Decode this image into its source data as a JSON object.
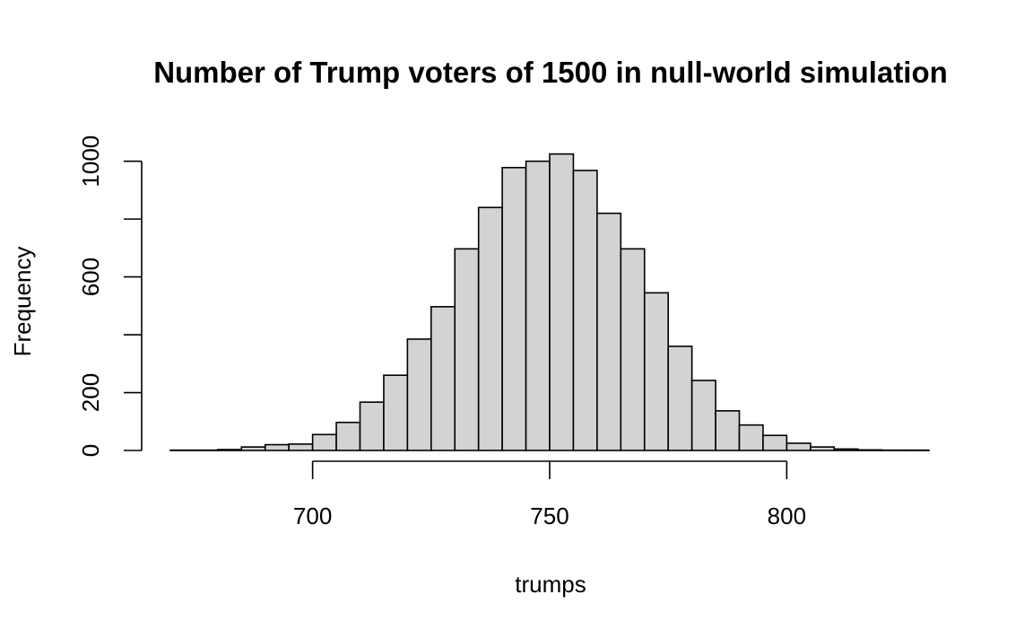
{
  "chart_data": {
    "type": "bar",
    "title": "Number of Trump voters of 1500 in null-world simulation",
    "xlabel": "trumps",
    "ylabel": "Frequency",
    "xlim": [
      670,
      830
    ],
    "ylim": [
      0,
      1030
    ],
    "x_ticks": [
      700,
      750,
      800
    ],
    "y_ticks": [
      0,
      200,
      600,
      1000
    ],
    "bin_width": 5,
    "bins": [
      {
        "start": 670,
        "end": 675,
        "value": 1
      },
      {
        "start": 675,
        "end": 680,
        "value": 1
      },
      {
        "start": 680,
        "end": 685,
        "value": 3
      },
      {
        "start": 685,
        "end": 690,
        "value": 12
      },
      {
        "start": 690,
        "end": 695,
        "value": 20
      },
      {
        "start": 695,
        "end": 700,
        "value": 22
      },
      {
        "start": 700,
        "end": 705,
        "value": 55
      },
      {
        "start": 705,
        "end": 710,
        "value": 97
      },
      {
        "start": 710,
        "end": 715,
        "value": 167
      },
      {
        "start": 715,
        "end": 720,
        "value": 260
      },
      {
        "start": 720,
        "end": 725,
        "value": 385
      },
      {
        "start": 725,
        "end": 730,
        "value": 497
      },
      {
        "start": 730,
        "end": 735,
        "value": 697
      },
      {
        "start": 735,
        "end": 740,
        "value": 840
      },
      {
        "start": 740,
        "end": 745,
        "value": 978
      },
      {
        "start": 745,
        "end": 750,
        "value": 1000
      },
      {
        "start": 750,
        "end": 755,
        "value": 1025
      },
      {
        "start": 755,
        "end": 760,
        "value": 968
      },
      {
        "start": 760,
        "end": 765,
        "value": 820
      },
      {
        "start": 765,
        "end": 770,
        "value": 697
      },
      {
        "start": 770,
        "end": 775,
        "value": 545
      },
      {
        "start": 775,
        "end": 780,
        "value": 360
      },
      {
        "start": 780,
        "end": 785,
        "value": 242
      },
      {
        "start": 785,
        "end": 790,
        "value": 137
      },
      {
        "start": 790,
        "end": 795,
        "value": 88
      },
      {
        "start": 795,
        "end": 800,
        "value": 52
      },
      {
        "start": 800,
        "end": 805,
        "value": 25
      },
      {
        "start": 805,
        "end": 810,
        "value": 12
      },
      {
        "start": 810,
        "end": 815,
        "value": 5
      },
      {
        "start": 815,
        "end": 820,
        "value": 2
      },
      {
        "start": 820,
        "end": 825,
        "value": 1
      },
      {
        "start": 825,
        "end": 830,
        "value": 1
      }
    ],
    "grid": false,
    "legend": "none",
    "bar_color": "#d3d3d3",
    "edge_color": "#000000"
  }
}
